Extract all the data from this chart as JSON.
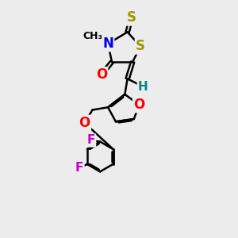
{
  "bg_color": "#ececec",
  "bond_color": "#000000",
  "bond_width": 1.8,
  "atom_colors": {
    "N": "#0000ee",
    "S": "#999900",
    "O": "#ff0000",
    "F": "#cc00cc",
    "H": "#008888"
  },
  "fig_width": 3.0,
  "fig_height": 3.0,
  "dpi": 100,
  "xlim": [
    0.0,
    8.5
  ],
  "ylim": [
    0.0,
    18.0
  ]
}
